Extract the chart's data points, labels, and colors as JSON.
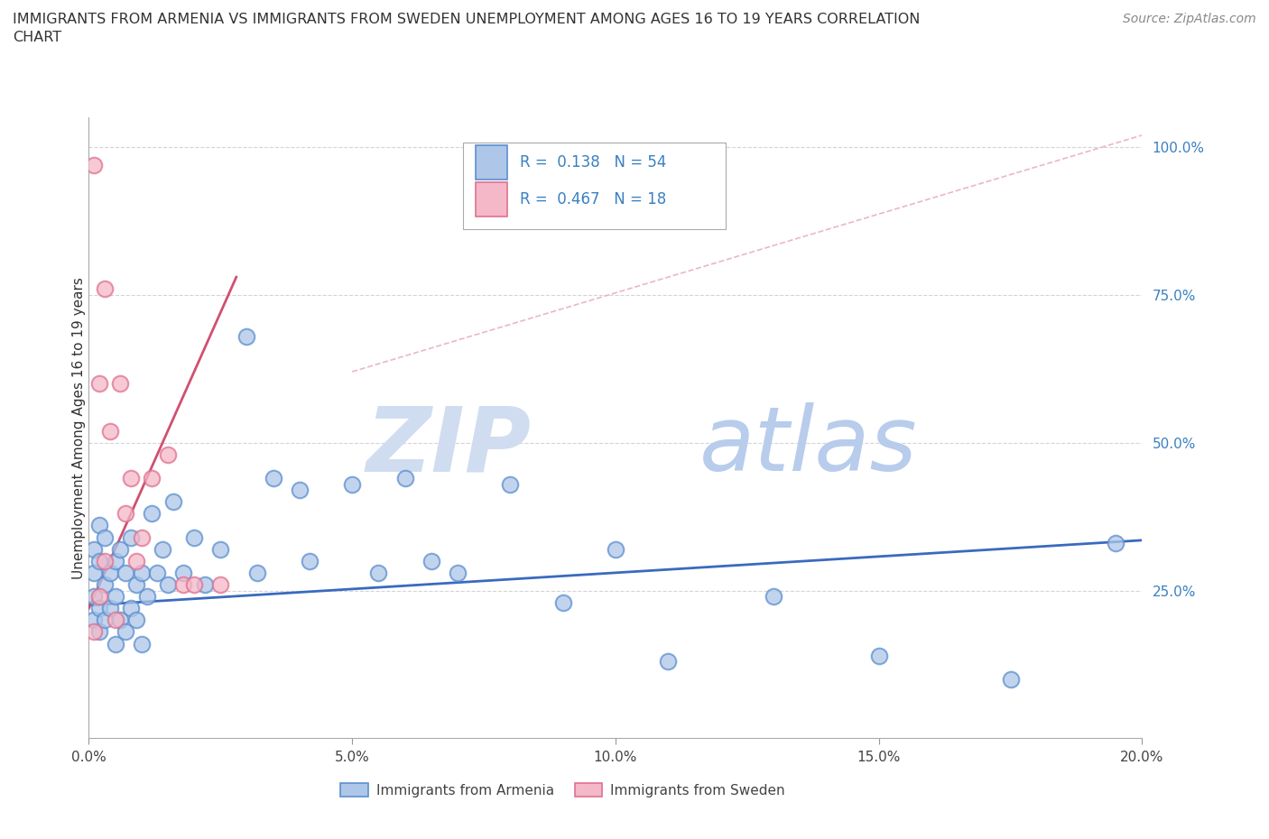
{
  "title_line1": "IMMIGRANTS FROM ARMENIA VS IMMIGRANTS FROM SWEDEN UNEMPLOYMENT AMONG AGES 16 TO 19 YEARS CORRELATION",
  "title_line2": "CHART",
  "source_text": "Source: ZipAtlas.com",
  "xlabel": "Immigrants from Armenia",
  "ylabel": "Unemployment Among Ages 16 to 19 years",
  "xlim": [
    0.0,
    0.2
  ],
  "ylim": [
    0.0,
    1.05
  ],
  "armenia_R": 0.138,
  "armenia_N": 54,
  "sweden_R": 0.467,
  "sweden_N": 18,
  "armenia_color": "#aec6e8",
  "sweden_color": "#f4b8c8",
  "armenia_edge_color": "#5b8fcf",
  "sweden_edge_color": "#e07090",
  "armenia_line_color": "#3a6abf",
  "sweden_line_color": "#d05070",
  "ref_line_color": "#e8b0be",
  "grid_color": "#c8c8d0",
  "right_tick_color": "#3a80c0",
  "arm_line_x0": 0.0,
  "arm_line_y0": 0.225,
  "arm_line_x1": 0.2,
  "arm_line_y1": 0.335,
  "swe_line_x0": 0.0,
  "swe_line_y0": 0.22,
  "swe_line_x1": 0.028,
  "swe_line_y1": 0.78,
  "ref_line_x0": 0.05,
  "ref_line_y0": 0.62,
  "ref_line_x1": 0.2,
  "ref_line_y1": 1.02,
  "arm_x": [
    0.001,
    0.001,
    0.001,
    0.001,
    0.002,
    0.002,
    0.002,
    0.002,
    0.003,
    0.003,
    0.003,
    0.004,
    0.004,
    0.005,
    0.005,
    0.005,
    0.006,
    0.006,
    0.007,
    0.007,
    0.008,
    0.008,
    0.009,
    0.009,
    0.01,
    0.01,
    0.011,
    0.012,
    0.013,
    0.014,
    0.015,
    0.016,
    0.018,
    0.02,
    0.022,
    0.025,
    0.03,
    0.032,
    0.035,
    0.04,
    0.042,
    0.05,
    0.055,
    0.06,
    0.065,
    0.07,
    0.08,
    0.09,
    0.1,
    0.11,
    0.13,
    0.15,
    0.175,
    0.195
  ],
  "arm_y": [
    0.2,
    0.24,
    0.28,
    0.32,
    0.18,
    0.22,
    0.3,
    0.36,
    0.2,
    0.26,
    0.34,
    0.22,
    0.28,
    0.16,
    0.24,
    0.3,
    0.2,
    0.32,
    0.18,
    0.28,
    0.22,
    0.34,
    0.2,
    0.26,
    0.16,
    0.28,
    0.24,
    0.38,
    0.28,
    0.32,
    0.26,
    0.4,
    0.28,
    0.34,
    0.26,
    0.32,
    0.68,
    0.28,
    0.44,
    0.42,
    0.3,
    0.43,
    0.28,
    0.44,
    0.3,
    0.28,
    0.43,
    0.23,
    0.32,
    0.13,
    0.24,
    0.14,
    0.1,
    0.33
  ],
  "swe_x": [
    0.001,
    0.001,
    0.002,
    0.002,
    0.003,
    0.003,
    0.004,
    0.005,
    0.006,
    0.007,
    0.008,
    0.009,
    0.01,
    0.012,
    0.015,
    0.018,
    0.02,
    0.025
  ],
  "swe_y": [
    0.97,
    0.18,
    0.6,
    0.24,
    0.76,
    0.3,
    0.52,
    0.2,
    0.6,
    0.38,
    0.44,
    0.3,
    0.34,
    0.44,
    0.48,
    0.26,
    0.26,
    0.26
  ]
}
